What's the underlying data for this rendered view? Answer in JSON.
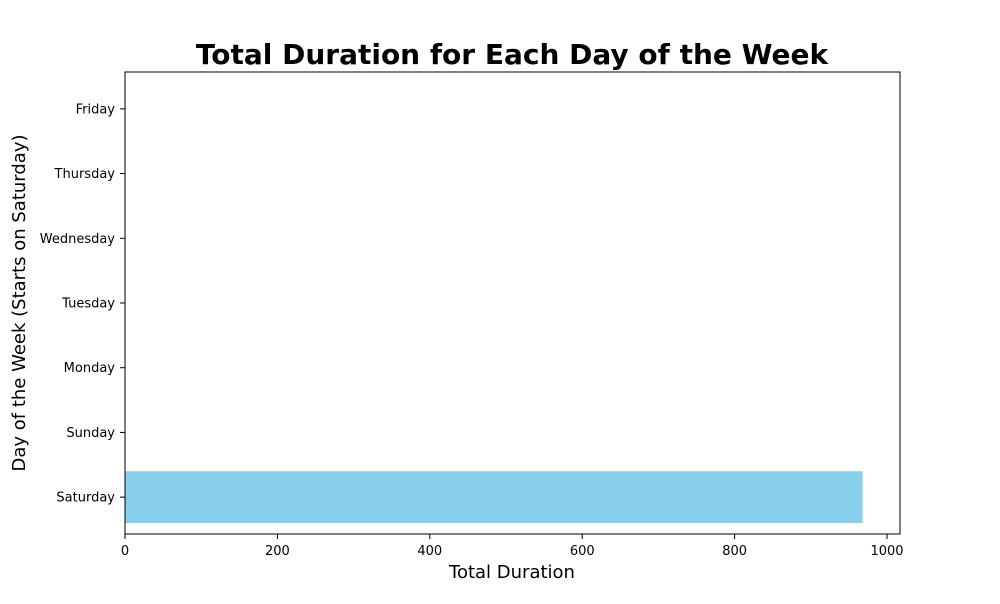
{
  "chart_data": {
    "type": "bar",
    "orientation": "horizontal",
    "title": "Total Duration for Each Day of the Week",
    "xlabel": "Total Duration",
    "ylabel": "Day of the Week (Starts on Saturday)",
    "categories": [
      "Saturday",
      "Sunday",
      "Monday",
      "Tuesday",
      "Wednesday",
      "Thursday",
      "Friday"
    ],
    "values": [
      968,
      0,
      0,
      0,
      0,
      0,
      0
    ],
    "xlim": [
      0,
      1017
    ],
    "xticks": [
      0,
      200,
      400,
      600,
      800,
      1000
    ],
    "grid": false,
    "bar_color": "#87CEEB"
  }
}
